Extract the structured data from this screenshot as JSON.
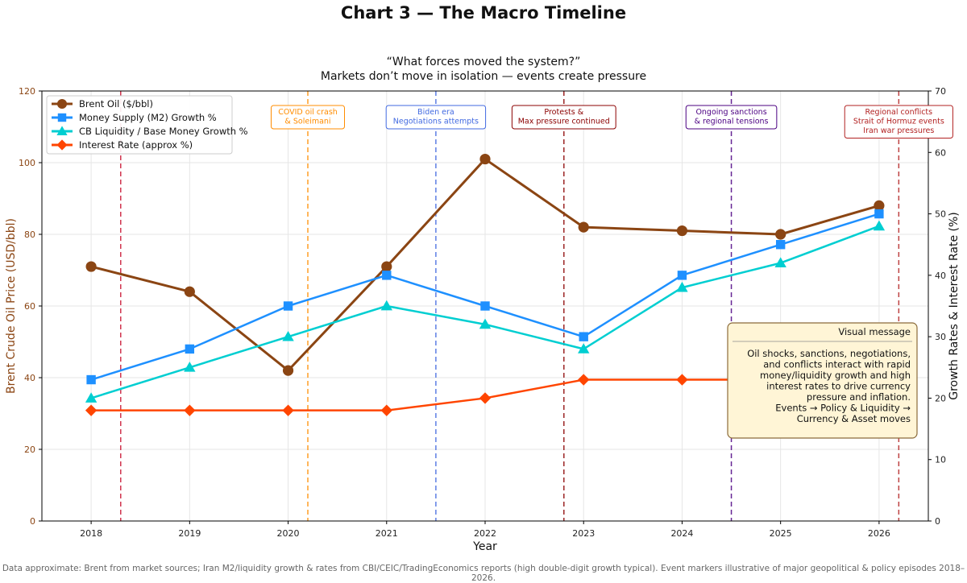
{
  "title": "Chart 3 — The Macro Timeline",
  "subtitle_lines": [
    "“What forces moved the system?”",
    "Markets don’t move in isolation — events create pressure"
  ],
  "footnote": "Data approximate: Brent from market sources; Iran M2/liquidity growth & rates from CBI/CEIC/TradingEconomics reports (high double-digit growth typical). Event markers illustrative of major geopolitical & policy episodes 2018–2026.",
  "chart_data": {
    "type": "line",
    "xlabel": "Year",
    "ylabel_left": "Brent Crude Oil Price (USD/bbl)",
    "ylabel_right": "Growth Rates & Interest Rate (%)",
    "x": [
      2018,
      2019,
      2020,
      2021,
      2022,
      2023,
      2024,
      2025,
      2026
    ],
    "xlim": [
      2017.5,
      2026.5
    ],
    "ylim_left": [
      0,
      120
    ],
    "ylim_right": [
      0,
      70
    ],
    "yticks_left": [
      0,
      20,
      40,
      60,
      80,
      100,
      120
    ],
    "yticks_right": [
      0,
      10,
      20,
      30,
      40,
      50,
      60,
      70
    ],
    "grid": true,
    "legend_position": "top-left",
    "series": [
      {
        "name": "Brent Oil ($/bbl)",
        "axis": "left",
        "color": "#8B4513",
        "marker": "circle",
        "values": [
          71,
          64,
          42,
          71,
          101,
          82,
          81,
          80,
          88
        ]
      },
      {
        "name": "Money Supply (M2) Growth %",
        "axis": "right",
        "color": "#1E90FF",
        "marker": "square",
        "values": [
          23,
          28,
          35,
          40,
          35,
          30,
          40,
          45,
          50
        ]
      },
      {
        "name": "CB Liquidity / Base Money Growth %",
        "axis": "right",
        "color": "#00CED1",
        "marker": "triangle",
        "values": [
          20,
          25,
          30,
          35,
          32,
          28,
          38,
          42,
          48
        ]
      },
      {
        "name": "Interest Rate (approx %)",
        "axis": "right",
        "color": "#FF4500",
        "marker": "diamond",
        "values": [
          18,
          18,
          18,
          18,
          20,
          23,
          23,
          23,
          23
        ]
      }
    ],
    "events": [
      {
        "x": 2018.3,
        "color": "#C8102E",
        "lines": [],
        "box": false
      },
      {
        "x": 2020.2,
        "color": "#FF8C00",
        "lines": [
          "COVID oil crash",
          "& Soleimani"
        ],
        "box": true
      },
      {
        "x": 2021.5,
        "color": "#4169E1",
        "lines": [
          "Biden era",
          "Negotiations attempts"
        ],
        "box": true
      },
      {
        "x": 2022.8,
        "color": "#8B0000",
        "lines": [
          "Protests &",
          "Max pressure continued"
        ],
        "box": true
      },
      {
        "x": 2024.5,
        "color": "#4B0082",
        "lines": [
          "Ongoing sanctions",
          "& regional tensions"
        ],
        "box": true
      },
      {
        "x": 2026.2,
        "color": "#B22222",
        "lines": [
          "Regional conflicts",
          "Strait of Hormuz events",
          "Iran war pressures"
        ],
        "box": true
      }
    ],
    "annotation": {
      "title": "Visual message",
      "body_lines": [
        "Oil shocks, sanctions, negotiations,",
        "and conflicts interact with rapid",
        "money/liquidity growth and high",
        "interest rates to drive currency",
        "pressure and inflation."
      ],
      "flow_lines": [
        "Events → Policy & Liquidity →",
        "Currency & Asset moves"
      ],
      "background": "#FFF5D6",
      "border": "#8B6B3A"
    }
  }
}
